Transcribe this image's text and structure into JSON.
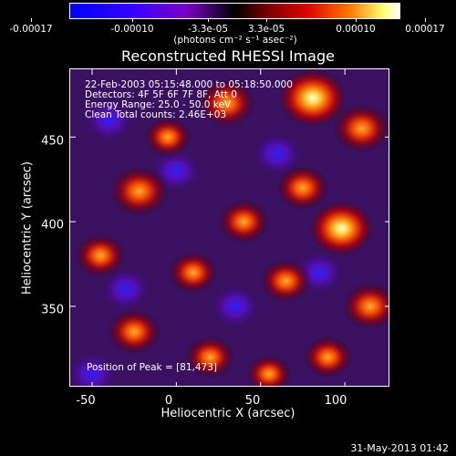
{
  "colorbar": {
    "tick_labels": [
      "-0.00017",
      "-0.00010",
      "-3.3e-05",
      "3.3e-05",
      "0.00010",
      "0.00017"
    ],
    "unit": "(photons cm⁻² s⁻¹ asec⁻²)",
    "colors": [
      "#0000ff",
      "#7a00c8",
      "#000000",
      "#e00000",
      "#ff7a00",
      "#ffff70",
      "#ffffff"
    ]
  },
  "chart_data": {
    "type": "heatmap",
    "title": "Reconstructed RHESSI Image",
    "xlabel": "Heliocentric X (arcsec)",
    "ylabel": "Heliocentric Y (arcsec)",
    "xlim": [
      -63,
      127
    ],
    "ylim": [
      302,
      490
    ],
    "x_ticks": [
      "-50",
      "0",
      "50",
      "100"
    ],
    "y_ticks": [
      "350",
      "400",
      "450"
    ],
    "info_lines": [
      "22-Feb-2003 05:15:48.000 to 05:18:50.000",
      "Detectors: 4F 5F 6F 7F 8F, Att 0",
      "Energy Range: 25.0 - 50.0 keV",
      "Clean    Total counts: 2.46E+03"
    ],
    "peak_text": "Position of Peak = [81,473]",
    "sources": [
      {
        "x": 81,
        "y": 473,
        "intensity": 1.0
      },
      {
        "x": 98,
        "y": 396,
        "intensity": 0.9
      },
      {
        "x": 30,
        "y": 470,
        "intensity": 0.7
      },
      {
        "x": -22,
        "y": 418,
        "intensity": 0.75
      },
      {
        "x": 110,
        "y": 455,
        "intensity": 0.7
      },
      {
        "x": 75,
        "y": 420,
        "intensity": 0.6
      },
      {
        "x": 40,
        "y": 400,
        "intensity": 0.55
      },
      {
        "x": 115,
        "y": 350,
        "intensity": 0.65
      },
      {
        "x": -25,
        "y": 335,
        "intensity": 0.6
      },
      {
        "x": -45,
        "y": 380,
        "intensity": 0.55
      },
      {
        "x": 10,
        "y": 370,
        "intensity": 0.5
      },
      {
        "x": 65,
        "y": 365,
        "intensity": 0.55
      },
      {
        "x": 90,
        "y": 320,
        "intensity": 0.5
      },
      {
        "x": 20,
        "y": 320,
        "intensity": 0.5
      },
      {
        "x": -5,
        "y": 450,
        "intensity": 0.45
      },
      {
        "x": 55,
        "y": 310,
        "intensity": 0.4
      }
    ],
    "sinks": [
      {
        "x": -40,
        "y": 460
      },
      {
        "x": 0,
        "y": 430
      },
      {
        "x": 35,
        "y": 350
      },
      {
        "x": -30,
        "y": 360
      },
      {
        "x": 85,
        "y": 370
      },
      {
        "x": -50,
        "y": 310
      },
      {
        "x": 60,
        "y": 440
      }
    ]
  },
  "timestamp": "31-May-2013 01:42"
}
